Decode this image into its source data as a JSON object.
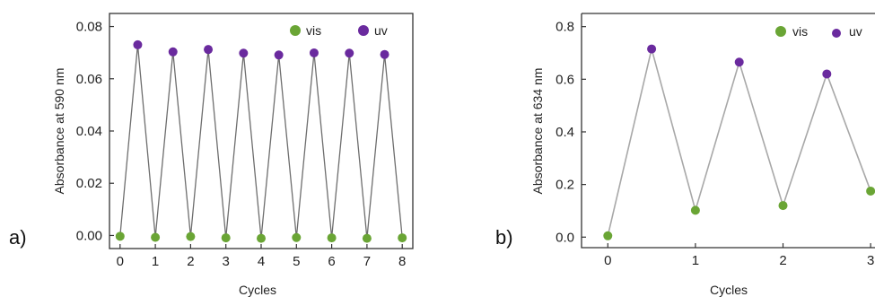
{
  "chart_data": [
    {
      "panel": "a)",
      "type": "scatter",
      "xlabel": "Cycles",
      "ylabel": "Absorbance at 590 nm",
      "xlim": [
        -0.3,
        8.3
      ],
      "ylim": [
        -0.005,
        0.085
      ],
      "xticks": [
        0,
        1,
        2,
        3,
        4,
        5,
        6,
        7,
        8
      ],
      "yticks": [
        0.0,
        0.02,
        0.04,
        0.06,
        0.08
      ],
      "ytick_labels": [
        "0.00",
        "0.02",
        "0.04",
        "0.06",
        "0.08"
      ],
      "legend_position": "top-right",
      "grid": false,
      "line_color": "#6e6e6e",
      "series": [
        {
          "name": "vis",
          "color": "#6aa535",
          "x": [
            0,
            1,
            2,
            3,
            4,
            5,
            6,
            7,
            8
          ],
          "y": [
            -0.0003,
            -0.0007,
            -0.0004,
            -0.0009,
            -0.0011,
            -0.0008,
            -0.0009,
            -0.0011,
            -0.0009
          ]
        },
        {
          "name": "uv",
          "color": "#6a2a9e",
          "x": [
            0.5,
            1.5,
            2.5,
            3.5,
            4.5,
            5.5,
            6.5,
            7.5
          ],
          "y": [
            0.073,
            0.0703,
            0.0712,
            0.0698,
            0.0691,
            0.0699,
            0.0698,
            0.0693
          ]
        }
      ]
    },
    {
      "panel": "b)",
      "type": "scatter",
      "xlabel": "Cycles",
      "ylabel": "Absorbance at 634 nm",
      "xlim": [
        -0.3,
        3.05
      ],
      "ylim": [
        -0.04,
        0.85
      ],
      "xticks": [
        0,
        1,
        2,
        3
      ],
      "yticks": [
        0.0,
        0.2,
        0.4,
        0.6,
        0.8
      ],
      "ytick_labels": [
        "0.0",
        "0.2",
        "0.4",
        "0.6",
        "0.8"
      ],
      "legend_position": "top-right",
      "grid": false,
      "line_color": "#a8a8a8",
      "series": [
        {
          "name": "vis",
          "color": "#6aa535",
          "x": [
            0,
            1,
            2,
            3
          ],
          "y": [
            0.005,
            0.102,
            0.12,
            0.175
          ]
        },
        {
          "name": "uv",
          "color": "#6a2a9e",
          "x": [
            0.5,
            1.5,
            2.5
          ],
          "y": [
            0.715,
            0.665,
            0.62
          ]
        }
      ]
    }
  ]
}
